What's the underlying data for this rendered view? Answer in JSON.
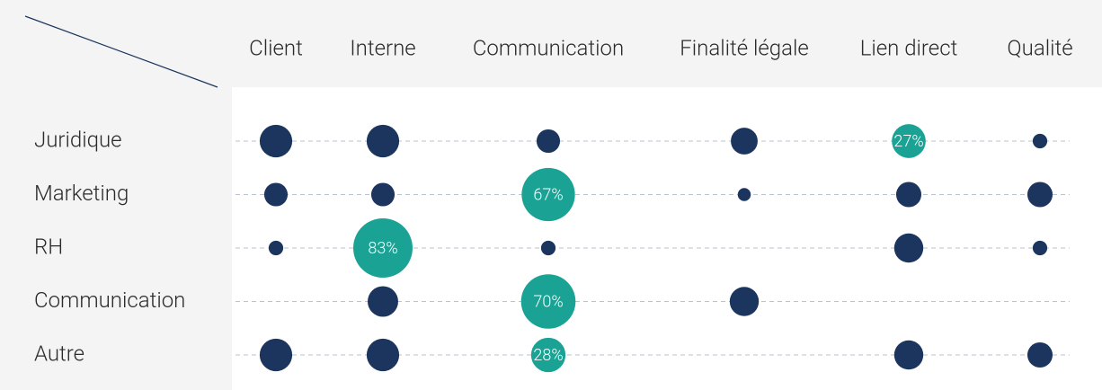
{
  "chart_data": {
    "type": "bubble-matrix",
    "categories": [
      "Client",
      "Interne",
      "Communication",
      "Finalité légale",
      "Lien direct",
      "Qualité"
    ],
    "color": "#1c355e",
    "highlight_color": "#1aa394",
    "series": [
      {
        "name": "Juridique",
        "values": [
          25,
          25,
          13,
          17,
          27,
          5
        ],
        "value_labels": [
          null,
          null,
          null,
          null,
          "27%",
          null
        ]
      },
      {
        "name": "Marketing",
        "values": [
          13,
          13,
          67,
          4,
          15,
          15
        ],
        "value_labels": [
          null,
          null,
          "67%",
          null,
          null,
          null
        ]
      },
      {
        "name": "RH",
        "values": [
          5,
          83,
          5,
          null,
          20,
          5
        ],
        "value_labels": [
          null,
          "83%",
          null,
          null,
          null,
          null
        ]
      },
      {
        "name": "Communication",
        "values": [
          null,
          22,
          70,
          20,
          null,
          null
        ],
        "value_labels": [
          null,
          null,
          "70%",
          null,
          null,
          null
        ]
      },
      {
        "name": "Autre",
        "values": [
          25,
          25,
          28,
          null,
          20,
          15
        ],
        "value_labels": [
          null,
          null,
          "28%",
          null,
          null,
          null
        ]
      }
    ]
  }
}
